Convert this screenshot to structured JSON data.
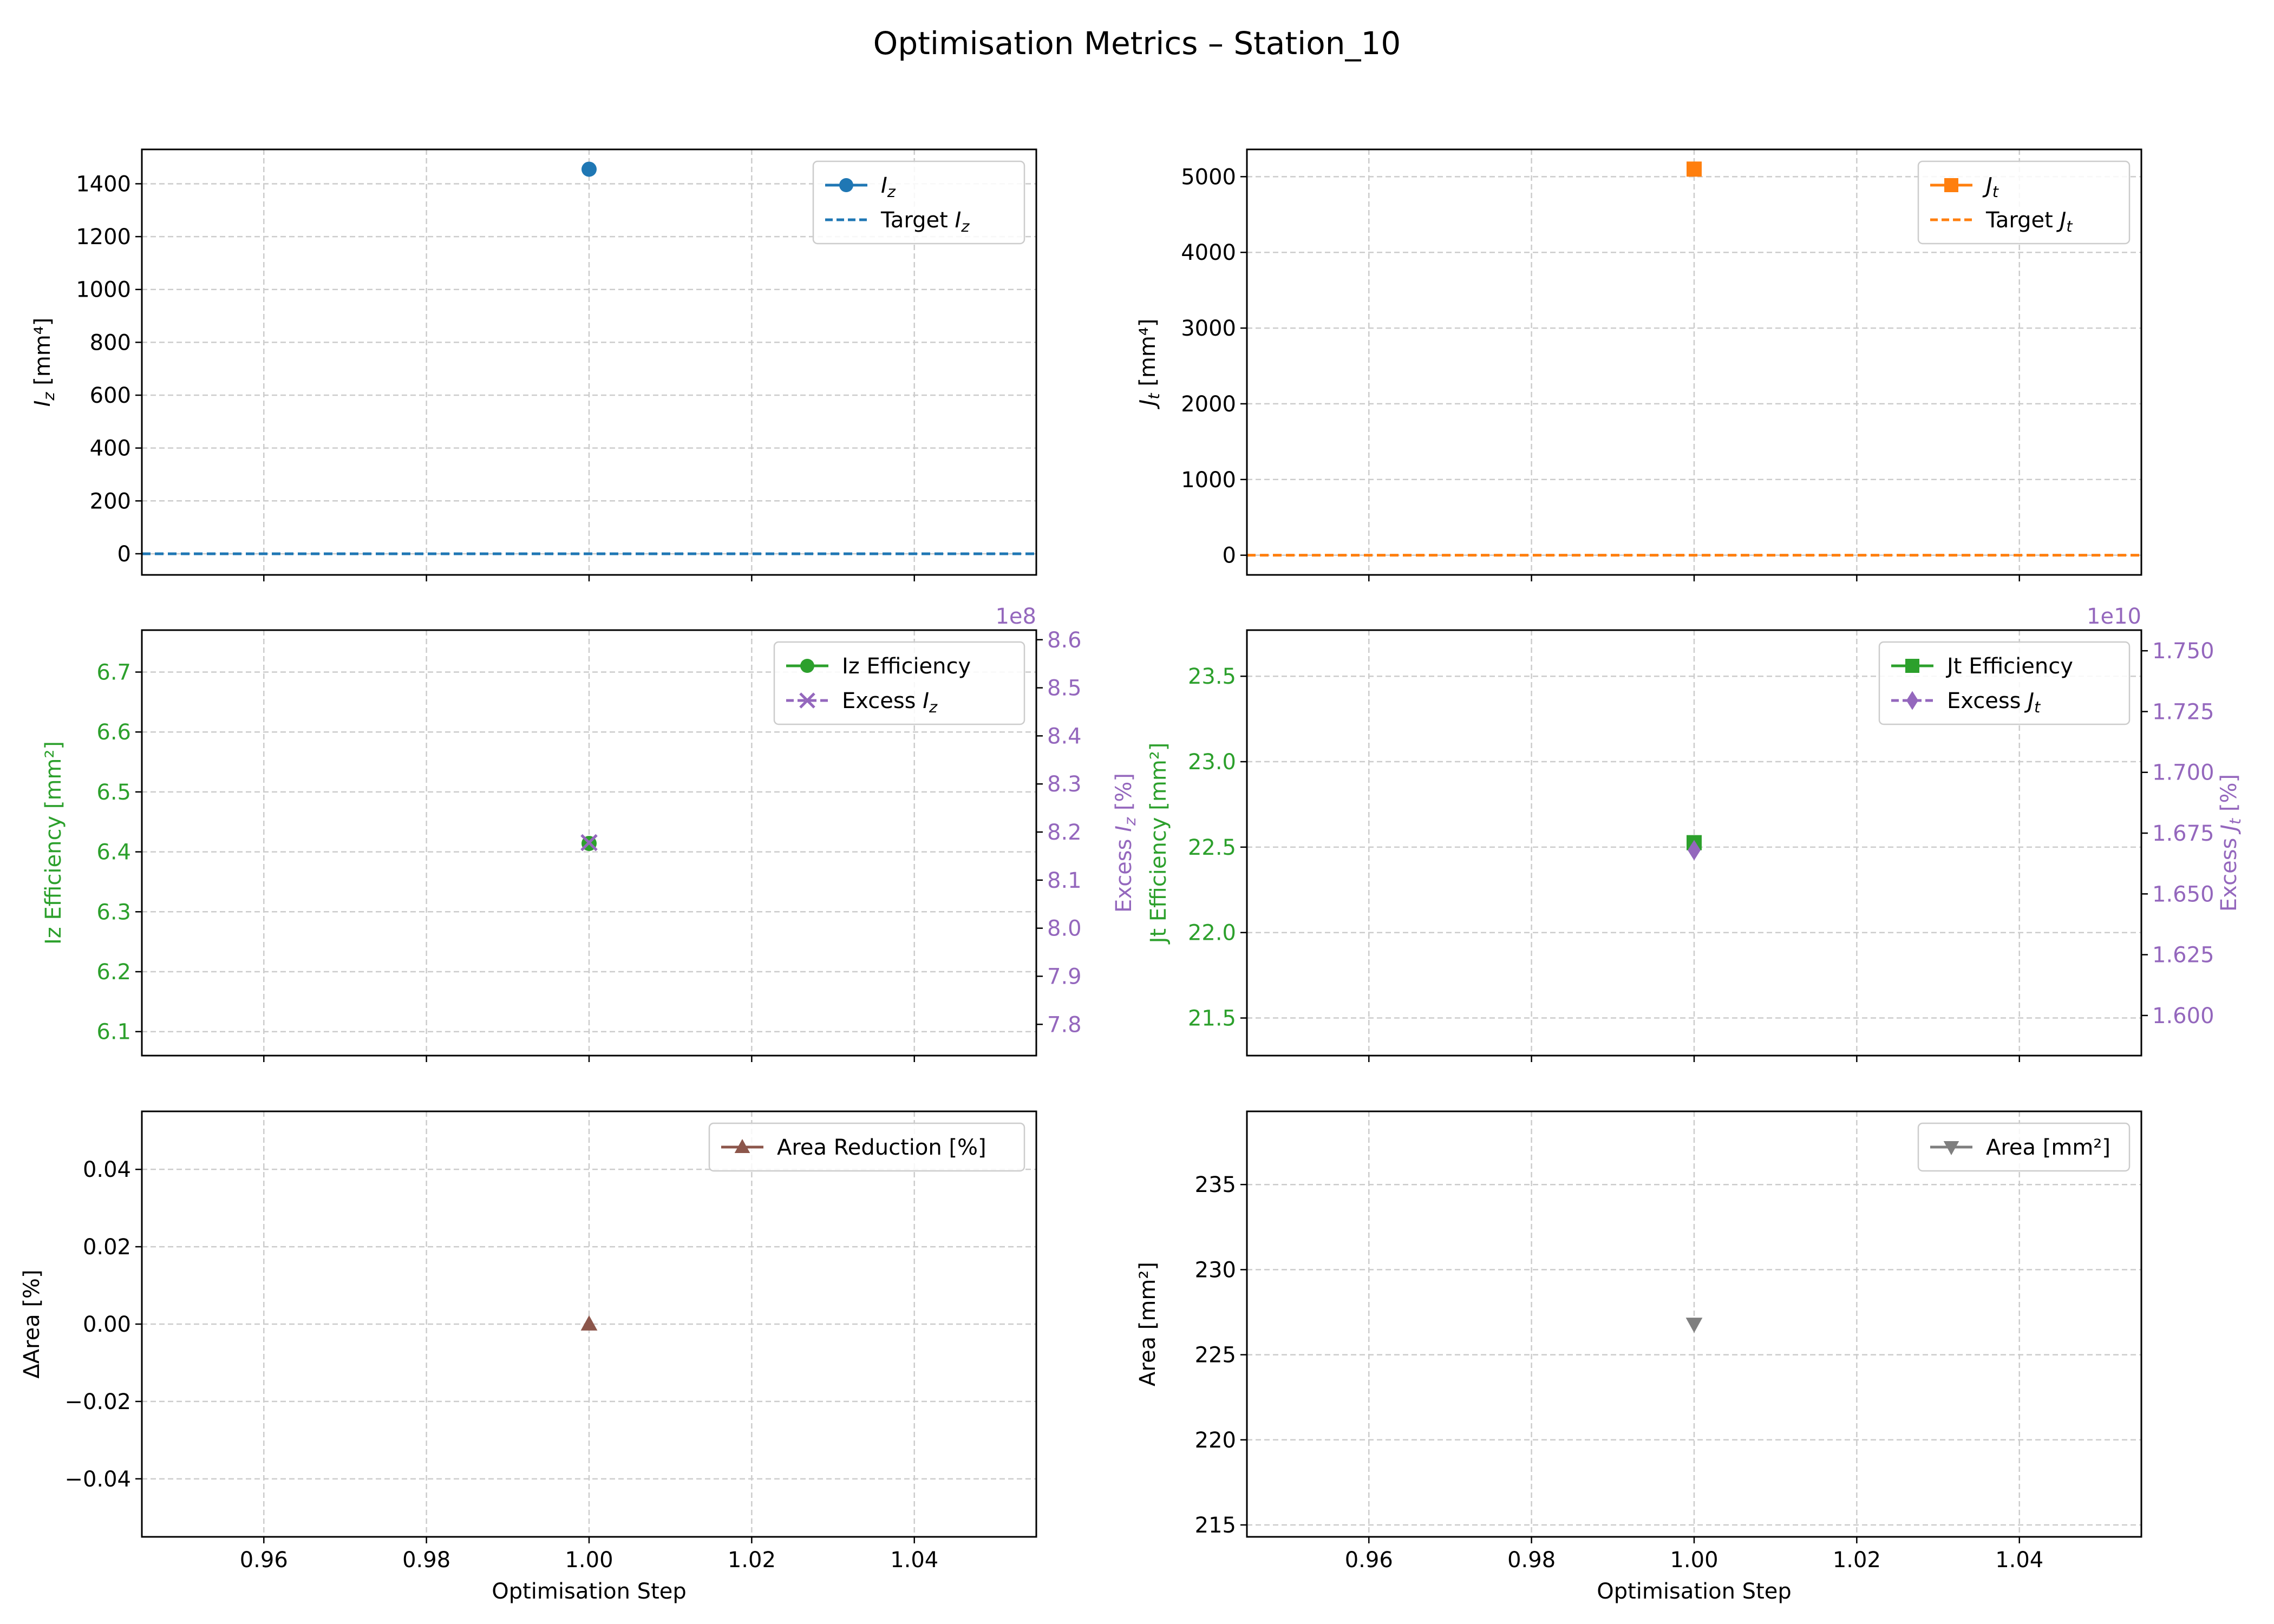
{
  "figure": {
    "title": "Optimisation Metrics – Station_10"
  },
  "chart_data": [
    {
      "id": "iz",
      "type": "line",
      "x": [
        1.0
      ],
      "xlim": [
        0.945,
        1.055
      ],
      "xticks": [
        "0.96",
        "0.98",
        "1.00",
        "1.02",
        "1.04"
      ],
      "xlabel": "",
      "ylabel": "I_z [mm⁴]",
      "ylim": [
        -80,
        1530
      ],
      "yticks": [
        "0",
        "200",
        "400",
        "600",
        "800",
        "1000",
        "1200",
        "1400"
      ],
      "grid": true,
      "legend": "top-right",
      "series": [
        {
          "name": "I_z",
          "values": [
            1455
          ],
          "color": "#1f77b4",
          "marker": "circle",
          "style": "solid"
        },
        {
          "name": "Target I_z",
          "values": [
            0
          ],
          "color": "#1f77b4",
          "marker": "none",
          "style": "dashed",
          "hline": true
        }
      ]
    },
    {
      "id": "jt",
      "type": "line",
      "x": [
        1.0
      ],
      "xlim": [
        0.945,
        1.055
      ],
      "xticks": [
        "0.96",
        "0.98",
        "1.00",
        "1.02",
        "1.04"
      ],
      "xlabel": "",
      "ylabel": "J_t [mm⁴]",
      "ylim": [
        -260,
        5360
      ],
      "yticks": [
        "0",
        "1000",
        "2000",
        "3000",
        "4000",
        "5000"
      ],
      "grid": true,
      "legend": "top-right",
      "series": [
        {
          "name": "J_t",
          "values": [
            5100
          ],
          "color": "#ff7f0e",
          "marker": "square",
          "style": "solid"
        },
        {
          "name": "Target J_t",
          "values": [
            0
          ],
          "color": "#ff7f0e",
          "marker": "none",
          "style": "dashed",
          "hline": true
        }
      ]
    },
    {
      "id": "iz_eff",
      "type": "line",
      "x": [
        1.0
      ],
      "xlim": [
        0.945,
        1.055
      ],
      "xticks": [
        "0.96",
        "0.98",
        "1.00",
        "1.02",
        "1.04"
      ],
      "xlabel": "",
      "ylabel": "Iz Efficiency [mm²]",
      "ylim": [
        6.06,
        6.77
      ],
      "yticks": [
        "6.1",
        "6.2",
        "6.3",
        "6.4",
        "6.5",
        "6.6",
        "6.7"
      ],
      "y2label": "Excess I_z [%]",
      "y2lim": [
        7.735,
        8.62
      ],
      "y2ticks": [
        "7.8",
        "7.9",
        "8.0",
        "8.1",
        "8.2",
        "8.3",
        "8.4",
        "8.5",
        "8.6"
      ],
      "y2offset": "1e8",
      "grid": true,
      "legend": "top-right",
      "series": [
        {
          "name": "Iz Efficiency",
          "values": [
            6.414
          ],
          "color": "#2ca02c",
          "marker": "circle",
          "style": "solid",
          "axis": "left"
        },
        {
          "name": "Excess I_z",
          "values": [
            8.178
          ],
          "color": "#9467bd",
          "marker": "x",
          "style": "dashed",
          "axis": "right"
        }
      ]
    },
    {
      "id": "jt_eff",
      "type": "line",
      "x": [
        1.0
      ],
      "xlim": [
        0.945,
        1.055
      ],
      "xticks": [
        "0.96",
        "0.98",
        "1.00",
        "1.02",
        "1.04"
      ],
      "xlabel": "",
      "ylabel": "Jt Efficiency [mm²]",
      "ylim": [
        21.28,
        23.77
      ],
      "yticks": [
        "21.5",
        "22.0",
        "22.5",
        "23.0",
        "23.5"
      ],
      "y2label": "Excess J_t [%]",
      "y2lim": [
        1.5835,
        1.7585
      ],
      "y2ticks": [
        "1.600",
        "1.625",
        "1.650",
        "1.675",
        "1.700",
        "1.725",
        "1.750"
      ],
      "y2offset": "1e10",
      "grid": true,
      "legend": "top-right",
      "series": [
        {
          "name": "Jt Efficiency",
          "values": [
            22.526
          ],
          "color": "#2ca02c",
          "marker": "square",
          "style": "solid",
          "axis": "left"
        },
        {
          "name": "Excess J_t",
          "values": [
            1.668
          ],
          "color": "#9467bd",
          "marker": "diamond",
          "style": "dashed",
          "axis": "right"
        }
      ]
    },
    {
      "id": "area_red",
      "type": "line",
      "x": [
        1.0
      ],
      "xlim": [
        0.945,
        1.055
      ],
      "xticks": [
        "0.96",
        "0.98",
        "1.00",
        "1.02",
        "1.04"
      ],
      "xlabel": "Optimisation Step",
      "ylabel": "ΔArea [%]",
      "ylim": [
        -0.055,
        0.055
      ],
      "yticks": [
        "−0.04",
        "−0.02",
        "0.00",
        "0.02",
        "0.04"
      ],
      "grid": true,
      "legend": "top-right",
      "series": [
        {
          "name": "Area Reduction [%]",
          "values": [
            0.0
          ],
          "color": "#8c564b",
          "marker": "triangle-up",
          "style": "solid"
        }
      ]
    },
    {
      "id": "area",
      "type": "line",
      "x": [
        1.0
      ],
      "xlim": [
        0.945,
        1.055
      ],
      "xticks": [
        "0.96",
        "0.98",
        "1.00",
        "1.02",
        "1.04"
      ],
      "xlabel": "Optimisation Step",
      "ylabel": "Area [mm²]",
      "ylim": [
        214.3,
        239.3
      ],
      "yticks": [
        "215",
        "220",
        "225",
        "230",
        "235"
      ],
      "grid": true,
      "legend": "top-right",
      "series": [
        {
          "name": "Area [mm²]",
          "values": [
            226.8
          ],
          "color": "#7f7f7f",
          "marker": "triangle-down",
          "style": "solid"
        }
      ]
    }
  ]
}
